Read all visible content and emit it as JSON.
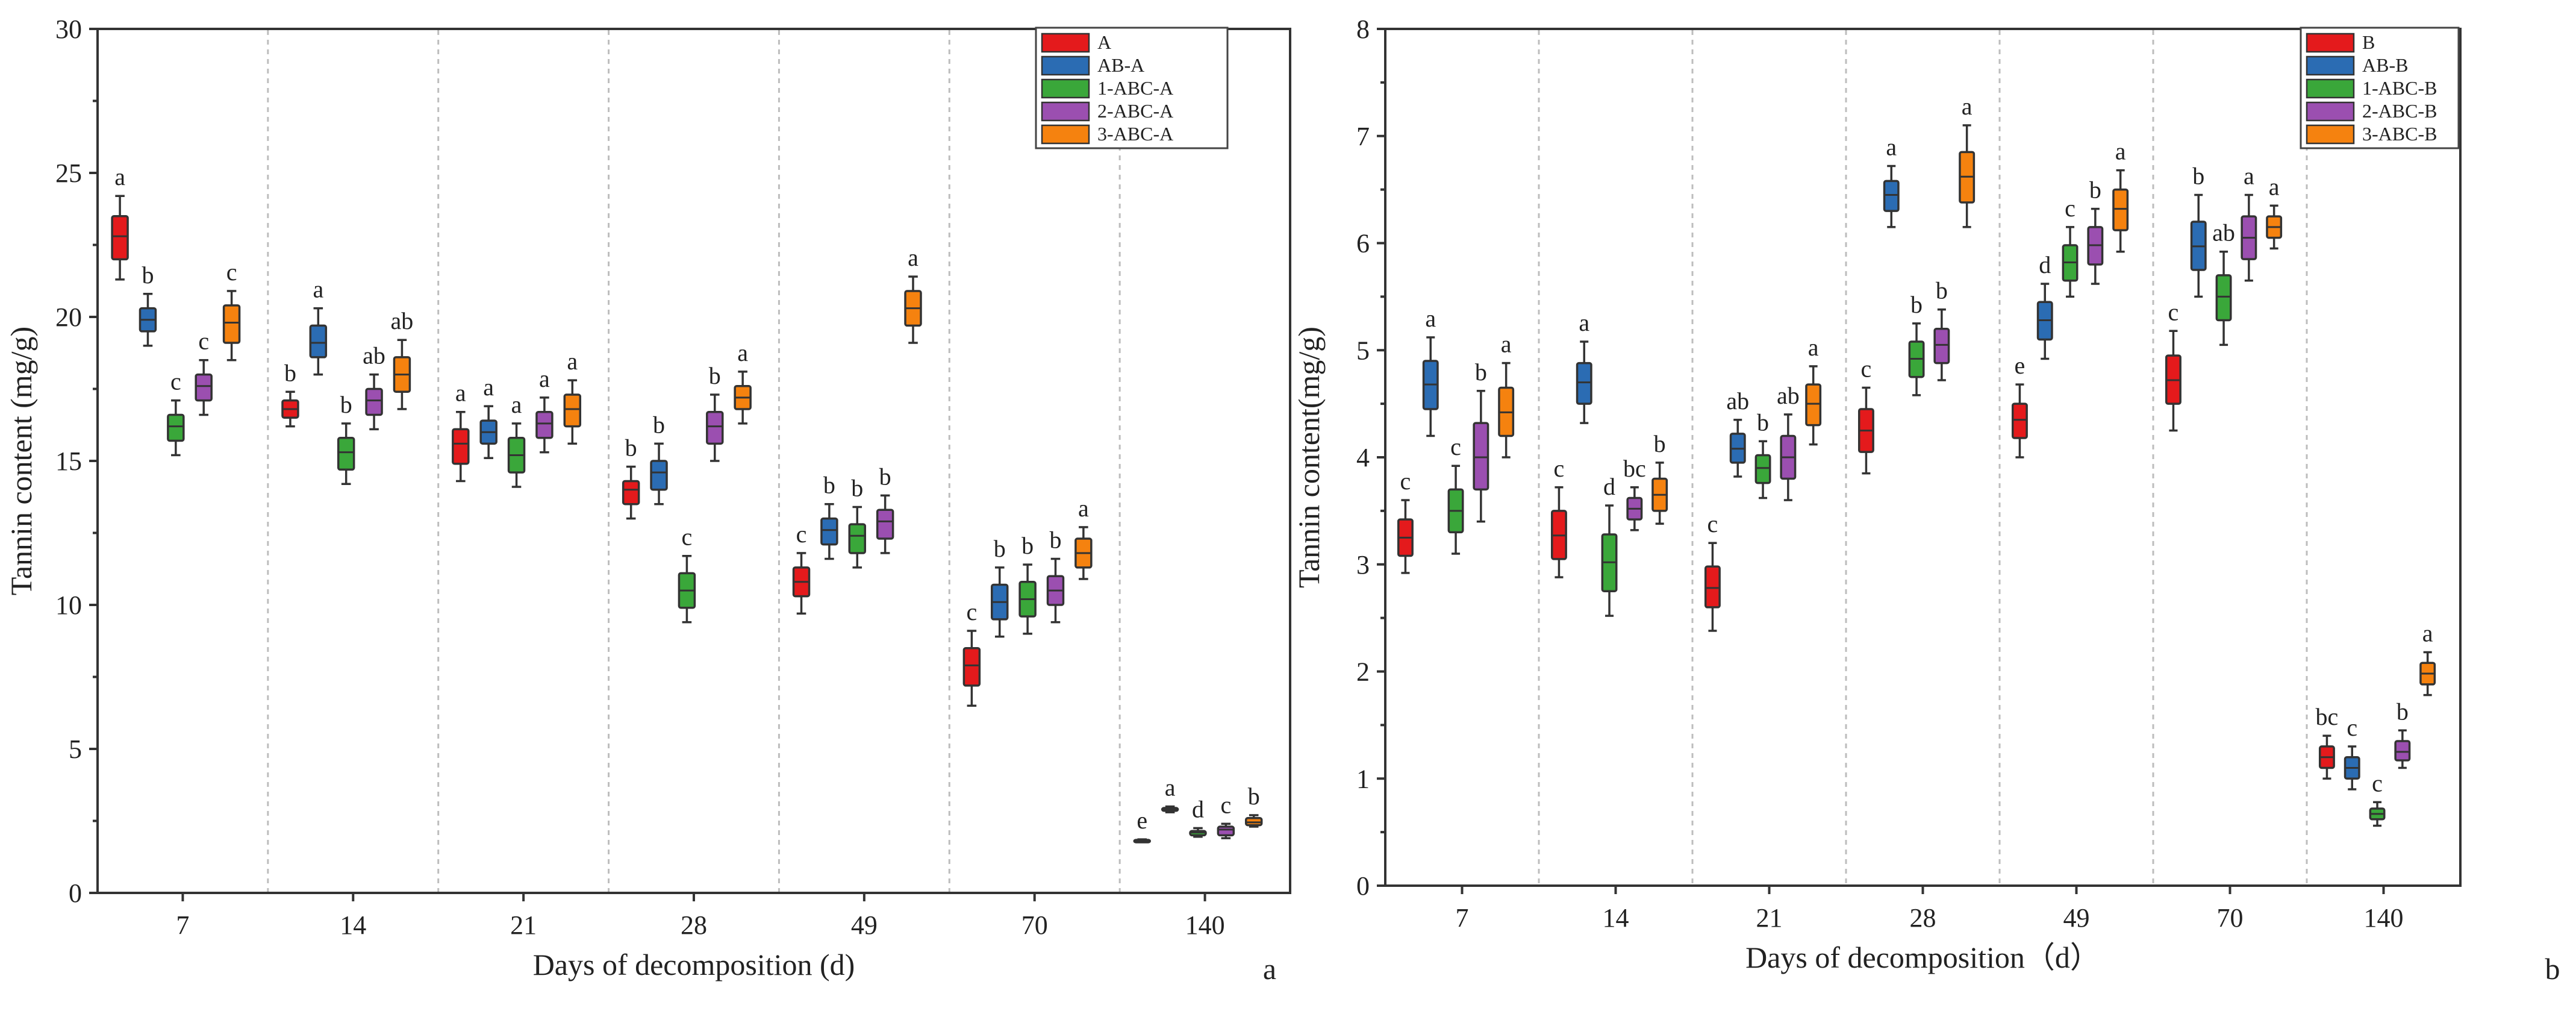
{
  "chart_data": [
    {
      "type": "box",
      "panel_label": "a",
      "title": "",
      "xlabel": "Days of decomposition (d)",
      "ylabel": "Tannin content (mg/g)",
      "ylim": [
        0,
        30
      ],
      "yticks": [
        0,
        5,
        10,
        15,
        20,
        25,
        30
      ],
      "categories": [
        "7",
        "14",
        "21",
        "28",
        "49",
        "70",
        "140"
      ],
      "legend_position": "top-right",
      "series": [
        {
          "name": "A",
          "color": "#e41a1c",
          "boxes": [
            {
              "min": 21.3,
              "q1": 22.0,
              "median": 22.8,
              "q3": 23.5,
              "max": 24.2,
              "label": "a"
            },
            {
              "min": 16.2,
              "q1": 16.5,
              "median": 16.8,
              "q3": 17.1,
              "max": 17.4,
              "label": "b"
            },
            {
              "min": 14.3,
              "q1": 14.9,
              "median": 15.6,
              "q3": 16.1,
              "max": 16.7,
              "label": "a"
            },
            {
              "min": 13.0,
              "q1": 13.5,
              "median": 14.0,
              "q3": 14.3,
              "max": 14.8,
              "label": "b"
            },
            {
              "min": 9.7,
              "q1": 10.3,
              "median": 10.8,
              "q3": 11.3,
              "max": 11.8,
              "label": "c"
            },
            {
              "min": 6.5,
              "q1": 7.2,
              "median": 7.9,
              "q3": 8.5,
              "max": 9.1,
              "label": "c"
            },
            {
              "min": 1.78,
              "q1": 1.8,
              "median": 1.82,
              "q3": 1.84,
              "max": 1.86,
              "label": "e"
            }
          ]
        },
        {
          "name": "AB-A",
          "color": "#2b6cb3",
          "boxes": [
            {
              "min": 19.0,
              "q1": 19.5,
              "median": 19.9,
              "q3": 20.3,
              "max": 20.8,
              "label": "b"
            },
            {
              "min": 18.0,
              "q1": 18.6,
              "median": 19.1,
              "q3": 19.7,
              "max": 20.3,
              "label": "a"
            },
            {
              "min": 15.1,
              "q1": 15.6,
              "median": 16.0,
              "q3": 16.4,
              "max": 16.9,
              "label": "a"
            },
            {
              "min": 13.5,
              "q1": 14.0,
              "median": 14.6,
              "q3": 15.0,
              "max": 15.6,
              "label": "b"
            },
            {
              "min": 11.6,
              "q1": 12.1,
              "median": 12.6,
              "q3": 13.0,
              "max": 13.5,
              "label": "b"
            },
            {
              "min": 8.9,
              "q1": 9.5,
              "median": 10.1,
              "q3": 10.7,
              "max": 11.3,
              "label": "b"
            },
            {
              "min": 2.8,
              "q1": 2.85,
              "median": 2.9,
              "q3": 2.95,
              "max": 3.0,
              "label": "a"
            }
          ]
        },
        {
          "name": "1-ABC-A",
          "color": "#3aa73a",
          "boxes": [
            {
              "min": 15.2,
              "q1": 15.7,
              "median": 16.2,
              "q3": 16.6,
              "max": 17.1,
              "label": "c"
            },
            {
              "min": 14.2,
              "q1": 14.7,
              "median": 15.3,
              "q3": 15.8,
              "max": 16.3,
              "label": "b"
            },
            {
              "min": 14.1,
              "q1": 14.6,
              "median": 15.2,
              "q3": 15.8,
              "max": 16.3,
              "label": "a"
            },
            {
              "min": 9.4,
              "q1": 9.9,
              "median": 10.5,
              "q3": 11.1,
              "max": 11.7,
              "label": "c"
            },
            {
              "min": 11.3,
              "q1": 11.8,
              "median": 12.4,
              "q3": 12.8,
              "max": 13.4,
              "label": "b"
            },
            {
              "min": 9.0,
              "q1": 9.6,
              "median": 10.2,
              "q3": 10.8,
              "max": 11.4,
              "label": "b"
            },
            {
              "min": 1.95,
              "q1": 2.0,
              "median": 2.1,
              "q3": 2.15,
              "max": 2.25,
              "label": "d"
            }
          ]
        },
        {
          "name": "2-ABC-A",
          "color": "#9b4fb0",
          "boxes": [
            {
              "min": 16.6,
              "q1": 17.1,
              "median": 17.6,
              "q3": 18.0,
              "max": 18.5,
              "label": "c"
            },
            {
              "min": 16.1,
              "q1": 16.6,
              "median": 17.1,
              "q3": 17.5,
              "max": 18.0,
              "label": "ab"
            },
            {
              "min": 15.3,
              "q1": 15.8,
              "median": 16.3,
              "q3": 16.7,
              "max": 17.2,
              "label": "a"
            },
            {
              "min": 15.0,
              "q1": 15.6,
              "median": 16.2,
              "q3": 16.7,
              "max": 17.3,
              "label": "b"
            },
            {
              "min": 11.8,
              "q1": 12.3,
              "median": 12.9,
              "q3": 13.3,
              "max": 13.8,
              "label": "b"
            },
            {
              "min": 9.4,
              "q1": 10.0,
              "median": 10.5,
              "q3": 11.0,
              "max": 11.6,
              "label": "b"
            },
            {
              "min": 1.9,
              "q1": 2.0,
              "median": 2.2,
              "q3": 2.3,
              "max": 2.4,
              "label": "c"
            }
          ]
        },
        {
          "name": "3-ABC-A",
          "color": "#f5820f",
          "boxes": [
            {
              "min": 18.5,
              "q1": 19.1,
              "median": 19.8,
              "q3": 20.4,
              "max": 20.9,
              "label": "c"
            },
            {
              "min": 16.8,
              "q1": 17.4,
              "median": 18.0,
              "q3": 18.6,
              "max": 19.2,
              "label": "ab"
            },
            {
              "min": 15.6,
              "q1": 16.2,
              "median": 16.8,
              "q3": 17.3,
              "max": 17.8,
              "label": "a"
            },
            {
              "min": 16.3,
              "q1": 16.8,
              "median": 17.2,
              "q3": 17.6,
              "max": 18.1,
              "label": "a"
            },
            {
              "min": 19.1,
              "q1": 19.7,
              "median": 20.3,
              "q3": 20.9,
              "max": 21.4,
              "label": "a"
            },
            {
              "min": 10.9,
              "q1": 11.3,
              "median": 11.8,
              "q3": 12.3,
              "max": 12.7,
              "label": "a"
            },
            {
              "min": 2.3,
              "q1": 2.35,
              "median": 2.45,
              "q3": 2.6,
              "max": 2.7,
              "label": "b"
            }
          ]
        }
      ]
    },
    {
      "type": "box",
      "panel_label": "b",
      "title": "",
      "xlabel": "Days of decomposition（d）",
      "ylabel": "Tannin content(mg/g)",
      "ylim": [
        0,
        8
      ],
      "yticks": [
        0,
        1,
        2,
        3,
        4,
        5,
        6,
        7,
        8
      ],
      "categories": [
        "7",
        "14",
        "21",
        "28",
        "49",
        "70",
        "140"
      ],
      "legend_position": "top-right",
      "series": [
        {
          "name": "B",
          "color": "#e41a1c",
          "boxes": [
            {
              "min": 2.92,
              "q1": 3.08,
              "median": 3.25,
              "q3": 3.42,
              "max": 3.6,
              "label": "c"
            },
            {
              "min": 2.88,
              "q1": 3.05,
              "median": 3.27,
              "q3": 3.5,
              "max": 3.72,
              "label": "c"
            },
            {
              "min": 2.38,
              "q1": 2.6,
              "median": 2.78,
              "q3": 2.98,
              "max": 3.2,
              "label": "c"
            },
            {
              "min": 3.85,
              "q1": 4.05,
              "median": 4.25,
              "q3": 4.45,
              "max": 4.65,
              "label": "c"
            },
            {
              "min": 4.0,
              "q1": 4.18,
              "median": 4.35,
              "q3": 4.5,
              "max": 4.68,
              "label": "e"
            },
            {
              "min": 4.25,
              "q1": 4.5,
              "median": 4.72,
              "q3": 4.95,
              "max": 5.18,
              "label": "c"
            },
            {
              "min": 1.0,
              "q1": 1.1,
              "median": 1.2,
              "q3": 1.3,
              "max": 1.4,
              "label": "bc"
            }
          ]
        },
        {
          "name": "AB-B",
          "color": "#2b6cb3",
          "boxes": [
            {
              "min": 4.2,
              "q1": 4.45,
              "median": 4.68,
              "q3": 4.9,
              "max": 5.12,
              "label": "a"
            },
            {
              "min": 4.32,
              "q1": 4.5,
              "median": 4.7,
              "q3": 4.88,
              "max": 5.08,
              "label": "a"
            },
            {
              "min": 3.82,
              "q1": 3.95,
              "median": 4.08,
              "q3": 4.22,
              "max": 4.35,
              "label": "ab"
            },
            {
              "min": 6.15,
              "q1": 6.3,
              "median": 6.45,
              "q3": 6.58,
              "max": 6.72,
              "label": "a"
            },
            {
              "min": 4.92,
              "q1": 5.1,
              "median": 5.28,
              "q3": 5.45,
              "max": 5.62,
              "label": "d"
            },
            {
              "min": 5.5,
              "q1": 5.75,
              "median": 5.97,
              "q3": 6.2,
              "max": 6.45,
              "label": "b"
            },
            {
              "min": 0.9,
              "q1": 1.0,
              "median": 1.1,
              "q3": 1.2,
              "max": 1.3,
              "label": "c"
            }
          ]
        },
        {
          "name": "1-ABC-B",
          "color": "#3aa73a",
          "boxes": [
            {
              "min": 3.1,
              "q1": 3.3,
              "median": 3.5,
              "q3": 3.7,
              "max": 3.92,
              "label": "c"
            },
            {
              "min": 2.52,
              "q1": 2.75,
              "median": 3.02,
              "q3": 3.28,
              "max": 3.55,
              "label": "d"
            },
            {
              "min": 3.62,
              "q1": 3.76,
              "median": 3.9,
              "q3": 4.02,
              "max": 4.15,
              "label": "b"
            },
            {
              "min": 4.58,
              "q1": 4.75,
              "median": 4.92,
              "q3": 5.08,
              "max": 5.25,
              "label": "b"
            },
            {
              "min": 5.5,
              "q1": 5.65,
              "median": 5.82,
              "q3": 5.98,
              "max": 6.15,
              "label": "c"
            },
            {
              "min": 5.05,
              "q1": 5.28,
              "median": 5.5,
              "q3": 5.7,
              "max": 5.92,
              "label": "ab"
            },
            {
              "min": 0.56,
              "q1": 0.62,
              "median": 0.67,
              "q3": 0.72,
              "max": 0.78,
              "label": "c"
            }
          ]
        },
        {
          "name": "2-ABC-B",
          "color": "#9b4fb0",
          "boxes": [
            {
              "min": 3.4,
              "q1": 3.7,
              "median": 4.0,
              "q3": 4.32,
              "max": 4.62,
              "label": "b"
            },
            {
              "min": 3.32,
              "q1": 3.42,
              "median": 3.52,
              "q3": 3.62,
              "max": 3.72,
              "label": "bc"
            },
            {
              "min": 3.6,
              "q1": 3.8,
              "median": 4.0,
              "q3": 4.2,
              "max": 4.4,
              "label": "ab"
            },
            {
              "min": 4.72,
              "q1": 4.88,
              "median": 5.05,
              "q3": 5.2,
              "max": 5.38,
              "label": "b"
            },
            {
              "min": 5.62,
              "q1": 5.8,
              "median": 5.98,
              "q3": 6.15,
              "max": 6.32,
              "label": "b"
            },
            {
              "min": 5.65,
              "q1": 5.85,
              "median": 6.05,
              "q3": 6.25,
              "max": 6.45,
              "label": "a"
            },
            {
              "min": 1.1,
              "q1": 1.17,
              "median": 1.25,
              "q3": 1.35,
              "max": 1.45,
              "label": "b"
            }
          ]
        },
        {
          "name": "3-ABC-B",
          "color": "#f5820f",
          "boxes": [
            {
              "min": 4.0,
              "q1": 4.2,
              "median": 4.42,
              "q3": 4.65,
              "max": 4.88,
              "label": "a"
            },
            {
              "min": 3.38,
              "q1": 3.5,
              "median": 3.65,
              "q3": 3.8,
              "max": 3.95,
              "label": "b"
            },
            {
              "min": 4.12,
              "q1": 4.3,
              "median": 4.5,
              "q3": 4.68,
              "max": 4.85,
              "label": "a"
            },
            {
              "min": 6.15,
              "q1": 6.38,
              "median": 6.62,
              "q3": 6.85,
              "max": 7.1,
              "label": "a"
            },
            {
              "min": 5.92,
              "q1": 6.12,
              "median": 6.32,
              "q3": 6.5,
              "max": 6.68,
              "label": "a"
            },
            {
              "min": 5.95,
              "q1": 6.05,
              "median": 6.15,
              "q3": 6.25,
              "max": 6.35,
              "label": "a"
            },
            {
              "min": 1.78,
              "q1": 1.88,
              "median": 1.98,
              "q3": 2.08,
              "max": 2.18,
              "label": "a"
            }
          ]
        }
      ]
    }
  ]
}
